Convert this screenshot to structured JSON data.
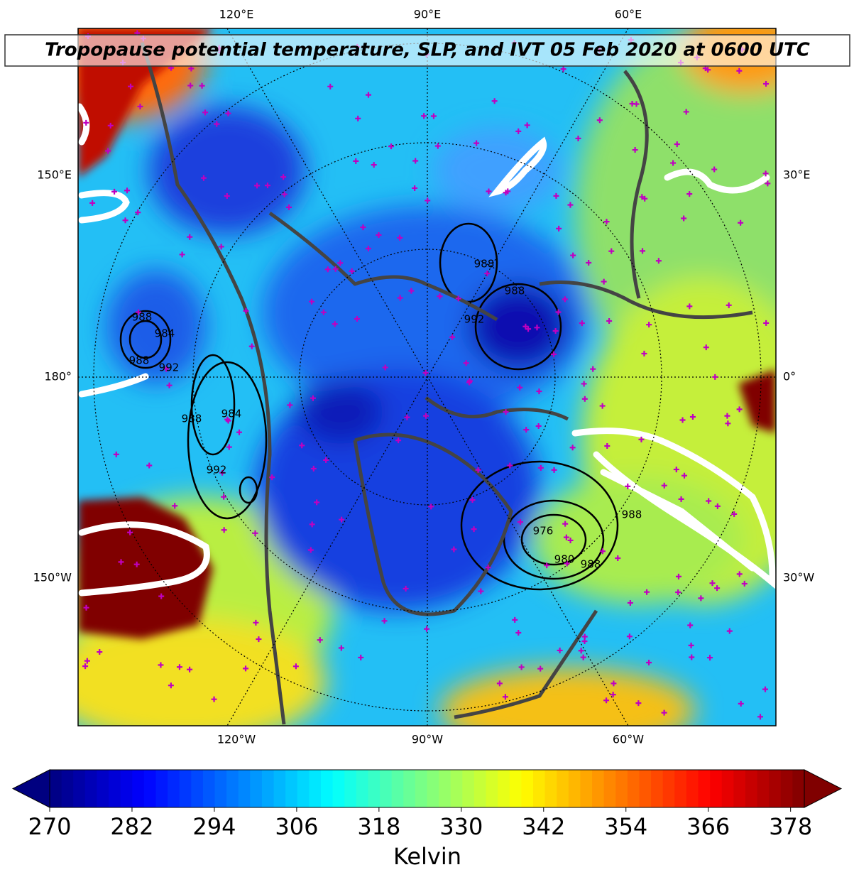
{
  "title": "Tropopause potential temperature, SLP, and IVT 05 Feb 2020 at 0600 UTC",
  "map": {
    "top_labels": [
      "120°E",
      "90°E",
      "60°E"
    ],
    "bottom_labels": [
      "120°W",
      "90°W",
      "60°W"
    ],
    "left_labels": [
      "150°E",
      "180°",
      "150°W"
    ],
    "right_labels": [
      "30°E",
      "0°",
      "30°W"
    ],
    "slp_labels": [
      "988",
      "984",
      "988",
      "992",
      "988",
      "984",
      "992",
      "988",
      "988",
      "992",
      "976",
      "980",
      "988",
      "988"
    ]
  },
  "colorbar": {
    "colormap": "jet",
    "range": [
      270,
      380
    ],
    "ticks": [
      270,
      282,
      294,
      306,
      318,
      330,
      342,
      354,
      366,
      378
    ],
    "label": "Kelvin"
  }
}
